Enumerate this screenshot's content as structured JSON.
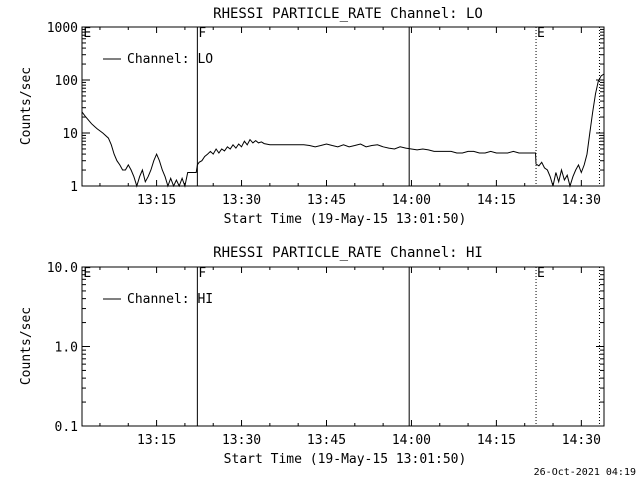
{
  "footer": {
    "timestamp": "26-Oct-2021 04:19"
  },
  "chart_data": [
    {
      "type": "line",
      "title": "RHESSI PARTICLE_RATE Channel: LO",
      "xlabel": "Start Time (19-May-15 13:01:50)",
      "ylabel": "Counts/sec",
      "yscale": "log",
      "ylim": [
        1,
        1000
      ],
      "yticks": [
        "1",
        "10",
        "100",
        "1000"
      ],
      "xlim_min": [
        1.83,
        94.0
      ],
      "xticks": [
        "13:15",
        "13:30",
        "13:45",
        "14:00",
        "14:15",
        "14:30"
      ],
      "xtick_min": [
        15,
        30,
        45,
        60,
        75,
        90
      ],
      "legend": {
        "label": "Channel: LO",
        "placement": "top-left"
      },
      "markers": [
        {
          "label": "E",
          "t_min": 1.9,
          "style": "none"
        },
        {
          "label": "F",
          "t_min": 22.2,
          "style": "solid"
        },
        {
          "label": "",
          "t_min": 59.6,
          "style": "solid"
        },
        {
          "label": "E",
          "t_min": 82.0,
          "style": "dotted"
        },
        {
          "label": "",
          "t_min": 93.2,
          "style": "dotted"
        }
      ],
      "series": [
        {
          "name": "Channel: LO",
          "x_min": [
            1.83,
            2.5,
            3.5,
            4.5,
            5.5,
            6.5,
            7.0,
            7.5,
            8.0,
            8.5,
            9.0,
            9.5,
            10.0,
            10.5,
            11.0,
            11.5,
            12.0,
            12.5,
            13.0,
            13.5,
            14.0,
            14.5,
            15.0,
            15.5,
            16.0,
            16.5,
            17.0,
            17.5,
            18.0,
            18.5,
            19.0,
            19.5,
            20.0,
            20.5,
            21.0,
            21.5,
            22.0,
            22.2,
            22.5,
            23.0,
            23.5,
            24.0,
            24.5,
            25.0,
            25.5,
            26.0,
            26.5,
            27.0,
            27.5,
            28.0,
            28.5,
            29.0,
            29.5,
            30.0,
            30.5,
            31.0,
            31.5,
            32.0,
            32.5,
            33.0,
            33.5,
            34.0,
            35.0,
            36.0,
            37.0,
            38.0,
            39.0,
            40.0,
            41.0,
            42.0,
            43.0,
            44.0,
            45.0,
            46.0,
            47.0,
            48.0,
            49.0,
            50.0,
            51.0,
            52.0,
            53.0,
            54.0,
            55.0,
            56.0,
            57.0,
            58.0,
            59.0,
            60.0,
            61.0,
            62.0,
            63.0,
            64.0,
            65.0,
            66.0,
            67.0,
            68.0,
            69.0,
            70.0,
            71.0,
            72.0,
            73.0,
            74.0,
            75.0,
            76.0,
            77.0,
            78.0,
            79.0,
            80.0,
            81.0,
            81.9,
            82.0,
            82.5,
            83.0,
            83.5,
            84.0,
            84.5,
            85.0,
            85.5,
            86.0,
            86.5,
            87.0,
            87.5,
            88.0,
            88.5,
            89.0,
            89.5,
            90.0,
            90.5,
            91.0,
            91.5,
            92.0,
            92.5,
            93.0,
            93.5,
            94.0
          ],
          "y": [
            25,
            20,
            15,
            12,
            10,
            8,
            6,
            4,
            3,
            2.5,
            2,
            2,
            2.5,
            2,
            1.5,
            1,
            1.5,
            2,
            1.2,
            1.5,
            2,
            3,
            4,
            3,
            2,
            1.5,
            1,
            1.4,
            1,
            1.3,
            1,
            1.4,
            1,
            1.8,
            1.8,
            1.8,
            1.8,
            2.5,
            2.8,
            3,
            3.6,
            4,
            4.5,
            4,
            5,
            4.2,
            5,
            4.6,
            5.5,
            5,
            6,
            5.2,
            6.2,
            5.5,
            7,
            6,
            7.5,
            6.5,
            7.2,
            6.5,
            6.8,
            6.3,
            6,
            6,
            6,
            6,
            6,
            6,
            6,
            5.8,
            5.5,
            5.8,
            6.2,
            5.8,
            5.5,
            6,
            5.5,
            5.8,
            6.2,
            5.5,
            5.8,
            6,
            5.5,
            5.2,
            5,
            5.5,
            5.2,
            5,
            4.8,
            5,
            4.8,
            4.5,
            4.5,
            4.5,
            4.5,
            4.2,
            4.2,
            4.5,
            4.5,
            4.2,
            4.2,
            4.5,
            4.2,
            4.2,
            4.2,
            4.5,
            4.2,
            4.2,
            4.2,
            4.2,
            2.6,
            2.4,
            2.8,
            2.2,
            2,
            1.5,
            1,
            1.8,
            1.2,
            2,
            1.3,
            1.6,
            1,
            1.5,
            2,
            2.5,
            1.8,
            2.5,
            4,
            10,
            25,
            55,
            95,
            120,
            130
          ]
        }
      ]
    },
    {
      "type": "line",
      "title": "RHESSI PARTICLE_RATE Channel: HI",
      "xlabel": "Start Time (19-May-15 13:01:50)",
      "ylabel": "Counts/sec",
      "yscale": "log",
      "ylim": [
        0.1,
        10.0
      ],
      "yticks": [
        "0.1",
        "1.0",
        "10.0"
      ],
      "xlim_min": [
        1.83,
        94.0
      ],
      "xticks": [
        "13:15",
        "13:30",
        "13:45",
        "14:00",
        "14:15",
        "14:30"
      ],
      "xtick_min": [
        15,
        30,
        45,
        60,
        75,
        90
      ],
      "legend": {
        "label": "Channel: HI",
        "placement": "top-left"
      },
      "markers": [
        {
          "label": "E",
          "t_min": 1.9,
          "style": "none"
        },
        {
          "label": "F",
          "t_min": 22.2,
          "style": "solid"
        },
        {
          "label": "",
          "t_min": 59.6,
          "style": "solid"
        },
        {
          "label": "E",
          "t_min": 82.0,
          "style": "dotted"
        },
        {
          "label": "",
          "t_min": 93.2,
          "style": "dotted"
        }
      ],
      "series": [
        {
          "name": "Channel: HI",
          "x_min": [],
          "y": []
        }
      ]
    }
  ]
}
